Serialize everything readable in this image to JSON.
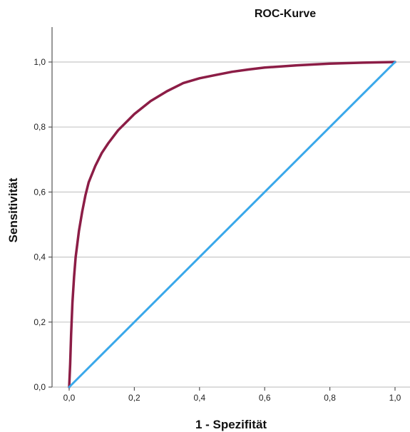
{
  "chart_data": {
    "type": "line",
    "title": "ROC-Kurve",
    "xlabel": "1 - Spezifität",
    "ylabel": "Sensitivität",
    "xlim": [
      0,
      1
    ],
    "ylim": [
      0,
      1
    ],
    "grid": "horizontal",
    "x_ticks": [
      "0,0",
      "0,2",
      "0,4",
      "0,6",
      "0,8",
      "1,0"
    ],
    "y_ticks": [
      "0,0",
      "0,2",
      "0,4",
      "0,6",
      "0,8",
      "1,0"
    ],
    "series": [
      {
        "color": "#8c1d46",
        "x": [
          0.0,
          0.003,
          0.006,
          0.01,
          0.015,
          0.02,
          0.03,
          0.04,
          0.05,
          0.06,
          0.08,
          0.1,
          0.12,
          0.15,
          0.18,
          0.2,
          0.25,
          0.3,
          0.35,
          0.4,
          0.45,
          0.5,
          0.55,
          0.6,
          0.7,
          0.8,
          0.9,
          1.0
        ],
        "y": [
          0.0,
          0.07,
          0.16,
          0.26,
          0.34,
          0.4,
          0.48,
          0.54,
          0.59,
          0.63,
          0.68,
          0.72,
          0.75,
          0.79,
          0.82,
          0.84,
          0.88,
          0.91,
          0.935,
          0.95,
          0.96,
          0.97,
          0.977,
          0.983,
          0.99,
          0.995,
          0.998,
          1.0
        ]
      },
      {
        "color": "#3aa8ea",
        "x": [
          0.0,
          1.0
        ],
        "y": [
          0.0,
          1.0
        ]
      }
    ]
  }
}
